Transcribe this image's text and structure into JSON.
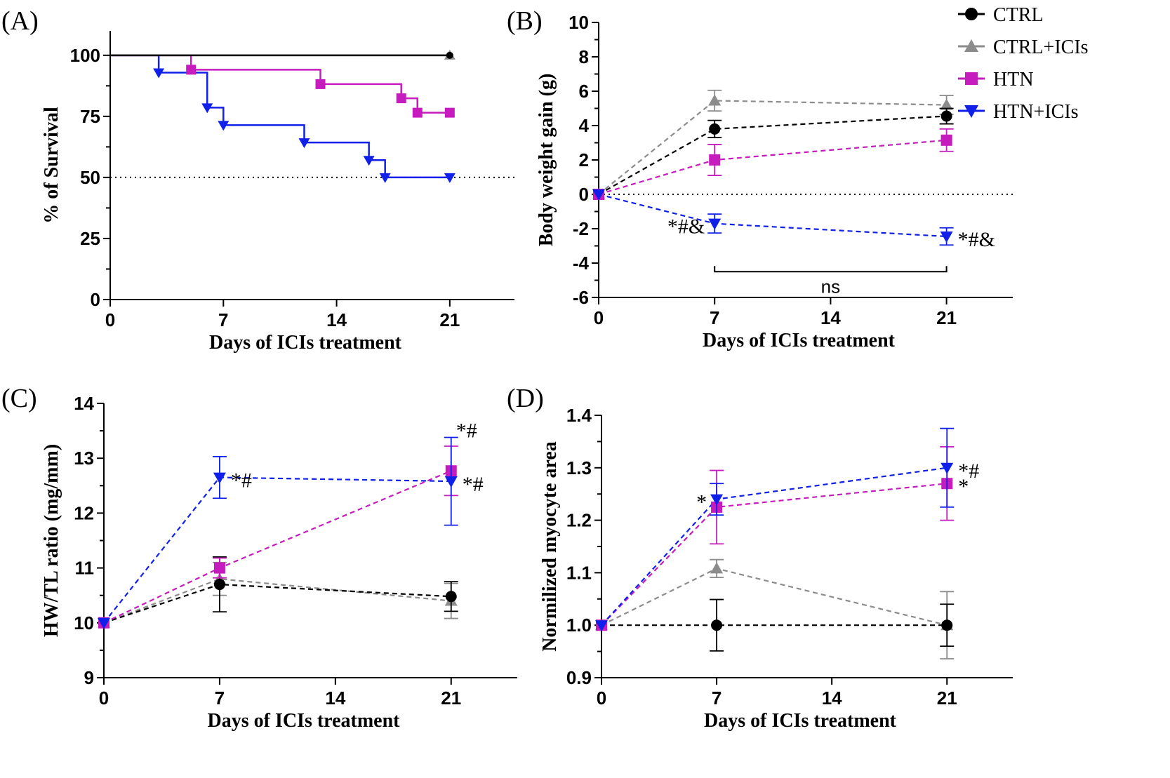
{
  "legend": [
    {
      "name": "CTRL",
      "color": "#000000",
      "marker": "circle"
    },
    {
      "name": "CTRL+ICIs",
      "color": "#8c8c8c",
      "marker": "triangle"
    },
    {
      "name": "HTN",
      "color": "#c61bbd",
      "marker": "square"
    },
    {
      "name": "HTN+ICIs",
      "color": "#1020e8",
      "marker": "triangle-down"
    }
  ],
  "chart_data": [
    {
      "panel": "(A)",
      "type": "line",
      "step": true,
      "xlabel": "Days of ICIs treatment",
      "ylabel": "% of Survival",
      "xlim": [
        0,
        25
      ],
      "ylim": [
        0,
        110
      ],
      "xticks": [
        0,
        7,
        14,
        21
      ],
      "yticks": [
        0,
        25,
        50,
        75,
        100
      ],
      "reference_line": 50,
      "series": [
        {
          "name": "CTRL",
          "x": [
            0,
            21
          ],
          "y": [
            100,
            100
          ],
          "markers_x": [
            21
          ],
          "markers_y": [
            100
          ]
        },
        {
          "name": "CTRL+ICIs",
          "x": [
            0,
            21
          ],
          "y": [
            100,
            100
          ],
          "markers_x": [
            21
          ],
          "markers_y": [
            100
          ]
        },
        {
          "name": "HTN",
          "x": [
            0,
            5,
            13,
            18,
            19,
            21
          ],
          "y": [
            100,
            94.1,
            88.2,
            82.4,
            76.5,
            76.5
          ],
          "markers_x": [
            5,
            13,
            18,
            19,
            21
          ],
          "markers_y": [
            94.1,
            88.2,
            82.4,
            76.5,
            76.5
          ]
        },
        {
          "name": "HTN+ICIs",
          "x": [
            0,
            3,
            6,
            7,
            12,
            16,
            17,
            21
          ],
          "y": [
            100,
            92.9,
            78.6,
            71.4,
            64.3,
            57.1,
            50,
            50
          ],
          "markers_x": [
            3,
            6,
            7,
            12,
            16,
            17,
            21
          ],
          "markers_y": [
            92.9,
            78.6,
            71.4,
            64.3,
            57.1,
            50,
            50
          ]
        }
      ]
    },
    {
      "panel": "(B)",
      "type": "line",
      "xlabel": "Days of ICIs treatment",
      "ylabel": "Body weight gain (g)",
      "xlim": [
        0,
        25
      ],
      "ylim": [
        -6,
        10
      ],
      "xticks": [
        0,
        7,
        14,
        21
      ],
      "yticks": [
        -6,
        -4,
        -2,
        0,
        2,
        4,
        6,
        8,
        10
      ],
      "reference_line": 0,
      "x": [
        0,
        7,
        21
      ],
      "series": [
        {
          "name": "CTRL",
          "y": [
            0,
            3.8,
            4.55
          ],
          "err": [
            0,
            0.5,
            0.45
          ]
        },
        {
          "name": "CTRL+ICIs",
          "y": [
            0,
            5.45,
            5.2
          ],
          "err": [
            0,
            0.6,
            0.55
          ]
        },
        {
          "name": "HTN",
          "y": [
            0,
            2.0,
            3.15
          ],
          "err": [
            0,
            0.9,
            0.65
          ]
        },
        {
          "name": "HTN+ICIs",
          "y": [
            0,
            -1.7,
            -2.45
          ],
          "err": [
            0,
            0.55,
            0.5
          ]
        }
      ],
      "annotations": [
        {
          "text": "*#&",
          "x": 7,
          "y": -1.7,
          "side": "left"
        },
        {
          "text": "*#&",
          "x": 21,
          "y": -2.45,
          "side": "right"
        }
      ],
      "bracket": {
        "x1": 7,
        "x2": 21,
        "y": -4.5,
        "label": "ns"
      }
    },
    {
      "panel": "(C)",
      "type": "line",
      "xlabel": "Days of ICIs treatment",
      "ylabel": "HW/TL ratio (mg/mm)",
      "xlim": [
        0,
        25
      ],
      "ylim": [
        9,
        14
      ],
      "xticks": [
        0,
        7,
        14,
        21
      ],
      "yticks": [
        9,
        10,
        11,
        12,
        13,
        14
      ],
      "x": [
        0,
        7,
        21
      ],
      "series": [
        {
          "name": "CTRL",
          "y": [
            10.0,
            10.7,
            10.48
          ],
          "err": [
            0,
            0.5,
            0.27
          ]
        },
        {
          "name": "CTRL+ICIs",
          "y": [
            10.0,
            10.8,
            10.4
          ],
          "err": [
            0,
            0.3,
            0.32
          ]
        },
        {
          "name": "HTN",
          "y": [
            10.0,
            11.0,
            12.77
          ],
          "err": [
            0,
            0.18,
            0.45
          ]
        },
        {
          "name": "HTN+ICIs",
          "y": [
            10.0,
            12.65,
            12.58
          ],
          "err": [
            0,
            0.38,
            0.8
          ]
        }
      ],
      "annotations": [
        {
          "text": "*#",
          "x": 7,
          "y": 12.65,
          "side": "right"
        },
        {
          "text": "*#",
          "x": 21,
          "y": 13.3,
          "side": "above"
        },
        {
          "text": "*#",
          "x": 21,
          "y": 12.58,
          "side": "right"
        }
      ]
    },
    {
      "panel": "(D)",
      "type": "line",
      "xlabel": "Days of ICIs treatment",
      "ylabel": "Normilized myocyte area",
      "xlim": [
        0,
        25
      ],
      "ylim": [
        0.9,
        1.4
      ],
      "xticks": [
        0,
        7,
        14,
        21
      ],
      "yticks": [
        0.9,
        1.0,
        1.1,
        1.2,
        1.3,
        1.4
      ],
      "x": [
        0,
        7,
        21
      ],
      "series": [
        {
          "name": "CTRL",
          "y": [
            1.0,
            1.0,
            1.0
          ],
          "err": [
            0,
            0.049,
            0.04
          ]
        },
        {
          "name": "CTRL+ICIs",
          "y": [
            1.0,
            1.108,
            1.0
          ],
          "err": [
            0,
            0.017,
            0.064
          ]
        },
        {
          "name": "HTN",
          "y": [
            1.0,
            1.225,
            1.27
          ],
          "err": [
            0,
            0.07,
            0.07
          ]
        },
        {
          "name": "HTN+ICIs",
          "y": [
            1.0,
            1.24,
            1.3
          ],
          "err": [
            0,
            0.03,
            0.075
          ]
        }
      ],
      "annotations": [
        {
          "text": "*",
          "x": 7,
          "y": 1.24,
          "side": "left"
        },
        {
          "text": "*#",
          "x": 21,
          "y": 1.3,
          "side": "right"
        },
        {
          "text": "*",
          "x": 21,
          "y": 1.27,
          "side": "right"
        }
      ]
    }
  ]
}
